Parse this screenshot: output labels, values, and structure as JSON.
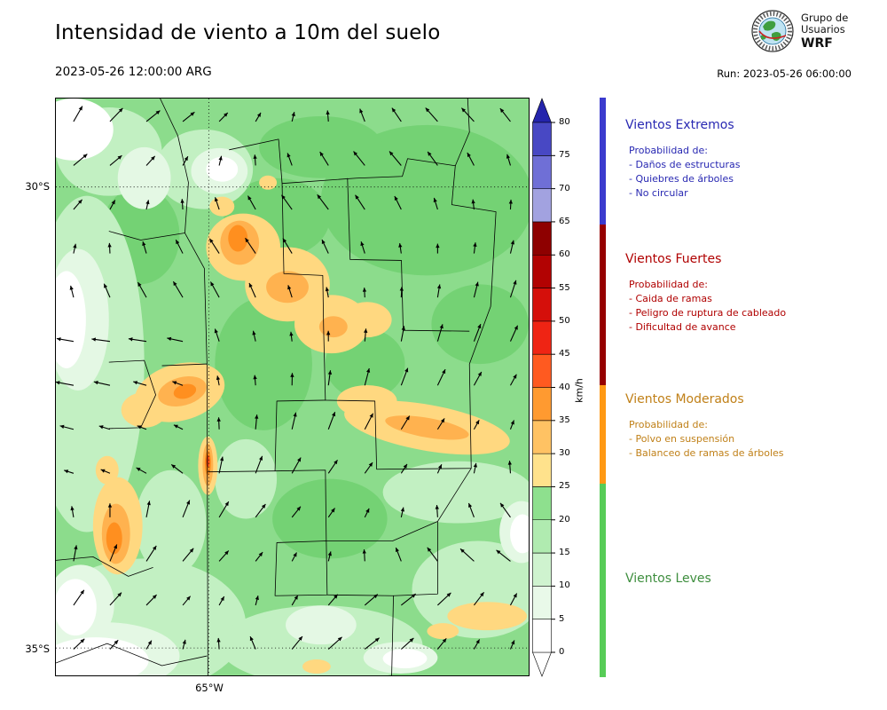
{
  "header": {
    "title": "Intensidad de viento a 10m del suelo",
    "datetime": "2023-05-26 12:00:00 ARG",
    "run_label": "Run: 2023-05-26 06:00:00",
    "logo": {
      "line1": "Grupo de",
      "line2": "Usuarios",
      "line3": "WRF"
    }
  },
  "map": {
    "lat_labels": [
      "30°S",
      "35°S"
    ],
    "lon_label": "65°W"
  },
  "colorbar": {
    "unit": "km/h",
    "tick_values": [
      0,
      5,
      10,
      15,
      20,
      25,
      30,
      35,
      40,
      45,
      50,
      55,
      60,
      65,
      70,
      75,
      80
    ],
    "segment_colors": [
      "#ffffff",
      "#e9f9e9",
      "#cff3cf",
      "#b0ebb0",
      "#8ee08e",
      "#ffe28c",
      "#ffc263",
      "#ff9a30",
      "#ff5a20",
      "#ef2414",
      "#d50f0a",
      "#b20202",
      "#8e0000",
      "#a2a2e0",
      "#6f6fd6",
      "#4848c4"
    ],
    "over_color": "#2424ac",
    "under_color": "#ffffff"
  },
  "legend": {
    "sections": [
      {
        "title": "Vientos Extremos",
        "prob_label": "Probabilidad de:",
        "items": [
          "- Daños de estructuras",
          "- Quiebres de árboles",
          "- No circular"
        ],
        "text_color": "#2828b2",
        "strip_color": "#3b3bce"
      },
      {
        "title": "Vientos Fuertes",
        "prob_label": "Probabilidad de:",
        "items": [
          "- Caida de ramas",
          "- Peligro de ruptura de cableado",
          "- Dificultad de avance"
        ],
        "text_color": "#b00000",
        "strip_color": "#960000"
      },
      {
        "title": "Vientos Moderados",
        "prob_label": "Probabilidad de:",
        "items": [
          "- Polvo en suspensión",
          "- Balanceo de ramas de árboles"
        ],
        "text_color": "#c08018",
        "strip_color": "#ff9914"
      },
      {
        "title": "Vientos Leves",
        "prob_label": "",
        "items": [],
        "text_color": "#3e8e3e",
        "strip_color": "#57cc57"
      }
    ]
  }
}
